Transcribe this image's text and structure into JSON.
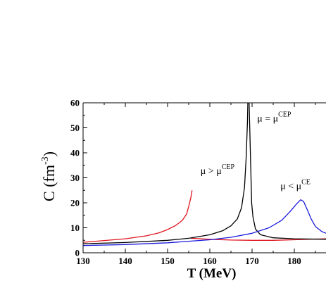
{
  "chart_data": {
    "type": "line",
    "title": "",
    "xlabel": "T (MeV)",
    "ylabel": "C (fm-3)",
    "ylabel_main": "C (fm",
    "ylabel_sup": "-3",
    "ylabel_close": ")",
    "xlim": [
      130,
      187.5
    ],
    "ylim": [
      0,
      60
    ],
    "xticks": [
      130,
      140,
      150,
      160,
      170,
      180
    ],
    "yticks": [
      0,
      10,
      20,
      30,
      40,
      50,
      60
    ],
    "grid": false,
    "series": [
      {
        "color": "#e0141e",
        "segments": [
          [
            [
              130,
              4.2
            ],
            [
              135,
              4.9
            ],
            [
              140,
              5.6
            ],
            [
              145,
              6.8
            ],
            [
              148,
              8.0
            ],
            [
              150,
              9.3
            ],
            [
              152,
              11.0
            ],
            [
              153.5,
              13.0
            ],
            [
              154.5,
              15.5
            ],
            [
              155,
              18.5
            ],
            [
              155.5,
              22.0
            ],
            [
              155.8,
              25.0
            ]
          ],
          [
            [
              155.5,
              5.8
            ],
            [
              160,
              5.4
            ],
            [
              165,
              5.1
            ],
            [
              170,
              5.0
            ],
            [
              175,
              5.0
            ],
            [
              180,
              5.2
            ],
            [
              185,
              5.5
            ],
            [
              187.5,
              5.6
            ]
          ]
        ]
      },
      {
        "color": "#000000",
        "segments": [
          [
            [
              130,
              3.6
            ],
            [
              140,
              4.1
            ],
            [
              150,
              5.0
            ],
            [
              155,
              5.8
            ],
            [
              160,
              7.2
            ],
            [
              163,
              8.8
            ],
            [
              165,
              10.8
            ],
            [
              166.5,
              13.5
            ],
            [
              167.5,
              18.0
            ],
            [
              168.2,
              26.0
            ],
            [
              168.6,
              38.0
            ],
            [
              168.9,
              52.0
            ],
            [
              169.0,
              60.0
            ]
          ],
          [
            [
              169.3,
              60.0
            ],
            [
              169.6,
              40.0
            ],
            [
              169.9,
              20.0
            ],
            [
              170.2,
              14.5
            ],
            [
              170.8,
              9.5
            ],
            [
              172,
              7.2
            ],
            [
              175,
              6.0
            ],
            [
              180,
              5.6
            ],
            [
              187.5,
              5.4
            ]
          ]
        ]
      },
      {
        "color": "#1a1adc",
        "segments": [
          [
            [
              130,
              2.9
            ],
            [
              140,
              3.3
            ],
            [
              150,
              4.0
            ],
            [
              160,
              5.2
            ],
            [
              165,
              6.2
            ],
            [
              170,
              7.8
            ],
            [
              174,
              10.0
            ],
            [
              177,
              13.0
            ],
            [
              179,
              16.5
            ],
            [
              180.5,
              19.5
            ],
            [
              181.5,
              21.2
            ],
            [
              182.2,
              20.5
            ],
            [
              183,
              17.5
            ],
            [
              184,
              13.5
            ],
            [
              185,
              10.5
            ],
            [
              186.5,
              8.5
            ],
            [
              187.5,
              7.8
            ]
          ]
        ]
      }
    ],
    "annotations": [
      {
        "label": "μ = μ",
        "sup": "CEP",
        "x": 171.2,
        "y": 52.5
      },
      {
        "label": "μ > μ",
        "sup": "CEP",
        "x": 157.8,
        "y": 31.5
      },
      {
        "label": "μ < μ",
        "sup": "CE",
        "x": 176.7,
        "y": 25.5
      }
    ]
  }
}
